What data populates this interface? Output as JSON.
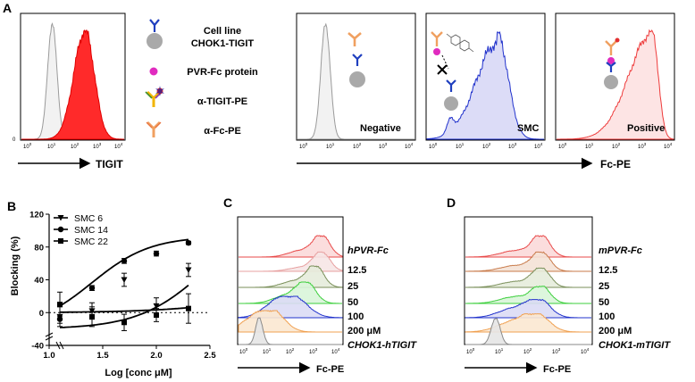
{
  "panel_labels": {
    "a": "A",
    "b": "B",
    "c": "C",
    "d": "D"
  },
  "panel_a": {
    "legend": {
      "cell_line": [
        "Cell line",
        "CHOK1-TIGIT"
      ],
      "protein": "PVR-Fc protein",
      "anti_tigit": "α-TIGIT-PE",
      "anti_fc": "α-Fc-PE"
    },
    "tigit_axis_label": "TIGIT",
    "fc_axis_label": "Fc-PE",
    "panel_names": {
      "negative": "Negative",
      "smc": "SMC",
      "positive": "Positive"
    },
    "ytick_zero": "0",
    "xticks": [
      {
        "base": "10",
        "exp": "0"
      },
      {
        "base": "10",
        "exp": "1"
      },
      {
        "base": "10",
        "exp": "2"
      },
      {
        "base": "10",
        "exp": "3"
      },
      {
        "base": "10",
        "exp": "4"
      }
    ],
    "colors": {
      "tigit_fill": "#ff2a2a",
      "isotype": "#9a9a9a",
      "smc_line": "#2233cc",
      "smc_fill": "#dcdcf7",
      "positive_line": "#ee3b3b",
      "positive_fill": "#fde4e4"
    }
  },
  "panel_c": {
    "title_label": "hPVR-Fc",
    "labels": [
      "12.5",
      "25",
      "50",
      "100",
      "200 μM"
    ],
    "cell_label": "CHOK1-hTIGIT",
    "xlabel": "Fc-PE",
    "xticks": [
      {
        "base": "10",
        "exp": "0"
      },
      {
        "base": "10",
        "exp": "1"
      },
      {
        "base": "10",
        "exp": "2"
      },
      {
        "base": "10",
        "exp": "3"
      },
      {
        "base": "10",
        "exp": "4"
      }
    ],
    "row_colors": [
      "#e84a4a",
      "#e7a0a0",
      "#7a8f5a",
      "#3ccf3c",
      "#2233cc",
      "#f0a050",
      "#8a8a8a"
    ],
    "row_fills": [
      "#fbd9d9",
      "#f6e6e6",
      "#e6ecdc",
      "#d9f5d9",
      "#dcdcf5",
      "#fbe8d2",
      "#e6e6e6"
    ]
  },
  "panel_d": {
    "title_label": "mPVR-Fc",
    "labels": [
      "12.5",
      "25",
      "50",
      "100",
      "200 μM"
    ],
    "cell_label": "CHOK1-mTIGIT",
    "xlabel": "Fc-PE",
    "xticks": [
      {
        "base": "10",
        "exp": "0"
      },
      {
        "base": "10",
        "exp": "1"
      },
      {
        "base": "10",
        "exp": "2"
      },
      {
        "base": "10",
        "exp": "3"
      },
      {
        "base": "10",
        "exp": "4"
      }
    ],
    "row_colors": [
      "#e84a4a",
      "#c87a4a",
      "#7a8f5a",
      "#3ccf3c",
      "#2233cc",
      "#f0a050",
      "#8a8a8a"
    ],
    "row_fills": [
      "#fbd9d9",
      "#f4e2d6",
      "#e6ecdc",
      "#d9f5d9",
      "#dcdcf5",
      "#fbe8d2",
      "#e6e6e6"
    ]
  },
  "chart_data": {
    "type": "scatter",
    "title": "",
    "xlabel": "Log [conc μM]",
    "ylabel": "Blocking (%)",
    "xlim": [
      1.0,
      2.5
    ],
    "ylim": [
      -40,
      120
    ],
    "xticks": [
      "1.0",
      "1.5",
      "2.0",
      "2.5"
    ],
    "yticks": [
      "-40",
      "0",
      "40",
      "80",
      "120"
    ],
    "reference_line": 0,
    "legend_position": "top-left",
    "series": [
      {
        "name": "SMC 6",
        "marker": "triangle-down",
        "x": [
          1.1,
          1.4,
          1.7,
          2.0,
          2.3
        ],
        "y": [
          -5,
          2,
          40,
          8,
          52
        ],
        "err": [
          12,
          10,
          8,
          10,
          8
        ],
        "fit": {
          "bottom": -20,
          "top": 120,
          "logec50": 2.45,
          "hill": 1.4
        }
      },
      {
        "name": "SMC 14",
        "marker": "circle",
        "x": [
          1.1,
          1.4,
          1.7,
          2.0,
          2.3
        ],
        "y": [
          -8,
          30,
          63,
          72,
          85
        ],
        "err": [
          5,
          3,
          3,
          3,
          2
        ],
        "fit": {
          "bottom": -20,
          "top": 93,
          "logec50": 1.4,
          "hill": 1.6
        }
      },
      {
        "name": "SMC 22",
        "marker": "square",
        "x": [
          1.1,
          1.4,
          1.7,
          2.0,
          2.3
        ],
        "y": [
          10,
          -5,
          -12,
          -3,
          5
        ],
        "err": [
          15,
          12,
          10,
          8,
          18
        ],
        "fit": {
          "bottom": 0,
          "top": 30,
          "logec50": 2.9,
          "hill": 1.0
        }
      }
    ]
  }
}
